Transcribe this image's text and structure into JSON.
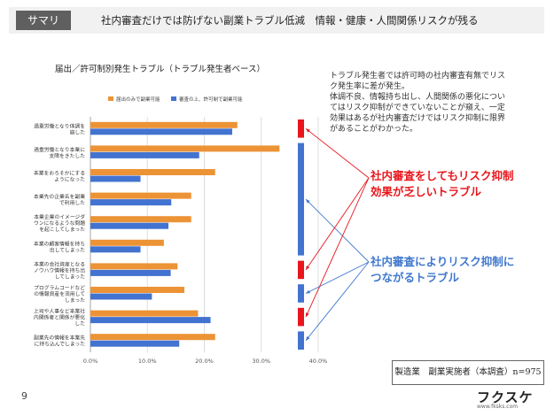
{
  "header": {
    "badge": "サマリ",
    "title": "社内審査だけでは防げない副業トラブル低減　情報・健康・人間関係リスクが残る"
  },
  "chart_title": "届出／許可制別発生トラブル（トラブル発生者ベース）",
  "description": [
    "トラブル発生者では許可時の社内審査有無でリス",
    "ク発生率に差が発生。",
    "体調不良、情報持ち出し、人間関係の悪化につい",
    "てはリスク抑制ができていないことが窺え、一定",
    "効果はあるが社内審査だけではリスク抑制に限界",
    "があることがわかった。"
  ],
  "callouts": {
    "red": [
      "社内審査をしてもリスク抑制",
      "効果が乏しいトラブル"
    ],
    "blue": [
      "社内審査によりリスク抑制に",
      "つながるトラブル"
    ]
  },
  "source_note": "製造業　副業実施者（本調査）n=975",
  "page_number": "9",
  "logo": "フクスケ",
  "url": "www.fksks.com",
  "colors": {
    "orange": "#ec9336",
    "blue": "#4373d0",
    "red": "#e8161c",
    "callout_blue": "#3f78ce"
  },
  "chart_data": {
    "type": "bar",
    "orientation": "horizontal",
    "title": "届出／許可制別発生トラブル（トラブル発生者ベース）",
    "legend": "top",
    "categories": [
      [
        "過重労働となり体調を",
        "崩した"
      ],
      [
        "過重労働となり本業に",
        "支障をきたした"
      ],
      [
        "本業をおろそかにする",
        "ようになった"
      ],
      [
        "本業先の企業名を副業",
        "で利用した"
      ],
      [
        "本業企業のイメージダ",
        "ウンになるような問題",
        "を起こしてしまった"
      ],
      [
        "本業の顧客情報を持ち",
        "出してしまった"
      ],
      [
        "本業の会社資産となる",
        "ノウハウ情報を持ち出",
        "してしまった"
      ],
      [
        "プログラムコードなど",
        "の情報資産を流用して",
        "しまった"
      ],
      [
        "上司や人事など本業社",
        "内関係者と関係が悪化",
        "した"
      ],
      [
        "副業先の情報を本業先",
        "に持ち込んでしまった"
      ]
    ],
    "series": [
      {
        "name": "届出のみで副業可能",
        "values": [
          25.8,
          33.2,
          21.9,
          17.7,
          17.7,
          12.9,
          15.3,
          16.5,
          18.9,
          21.9
        ]
      },
      {
        "name": "審査の上、許可制で副業可能",
        "values": [
          24.9,
          19.1,
          8.8,
          14.2,
          13.7,
          8.8,
          14.1,
          10.8,
          21.1,
          15.6
        ]
      }
    ],
    "xlim": [
      0,
      40
    ],
    "xticks": [
      "0.0%",
      "10.0%",
      "20.0%",
      "30.0%",
      "40.0%"
    ],
    "indicators": [
      "red",
      "blue",
      "blue",
      "blue",
      "blue",
      "blue",
      "red",
      "blue",
      "red",
      "blue"
    ]
  }
}
